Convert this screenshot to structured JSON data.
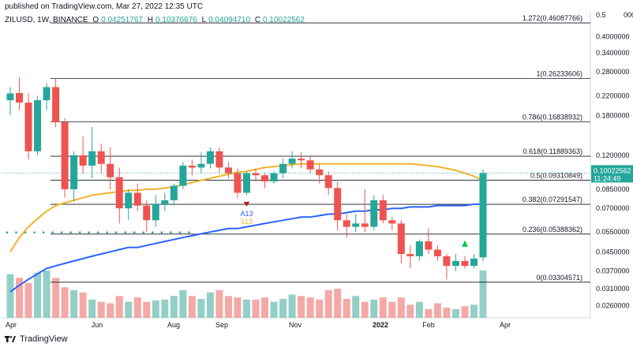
{
  "header": {
    "published": "published on TradingView.com, Mar 27, 2022 12:35 UTC",
    "symbol": "ZILUSD, 1W, BINANCE",
    "o_label": "O",
    "o_value": "0.04251767",
    "h_label": "H",
    "h_value": "0.10376676",
    "l_label": "L",
    "l_value": "0.04094710",
    "c_label": "C",
    "c_value": "0.10022562"
  },
  "footer": {
    "brand": "TradingView"
  },
  "colors": {
    "up": "#26a69a",
    "down": "#ef5350",
    "ma_fast": "#f0b429",
    "ma_slow": "#2962ff",
    "vol_up": "#93cfc7",
    "vol_down": "#f4a9a7",
    "price_tag": "#26a69a"
  },
  "price_tag": {
    "price": "0.10022562",
    "countdown": "11:24:49"
  },
  "chart_data": {
    "type": "candlestick",
    "scale": "log",
    "ylim": [
      0.023,
      0.52
    ],
    "x_tick_labels": [
      "Apr",
      "Jun",
      "Aug",
      "Sep",
      "Nov",
      "2022",
      "Feb",
      "Apr"
    ],
    "y_tick_labels": [
      "0.5",
      "0.4000000",
      "0.3400000",
      "0.2800000",
      "0.2200000",
      "0.1800000",
      "0.1200000",
      "0.0850000",
      "0.0700000",
      "0.0550000",
      "0.0450000",
      "0.0370000",
      "0.0310000",
      "0.0260000"
    ],
    "y_tick_values": [
      0.5,
      0.4,
      0.34,
      0.28,
      0.22,
      0.18,
      0.12,
      0.085,
      0.07,
      0.055,
      0.045,
      0.037,
      0.031,
      0.026
    ],
    "axis_top_partial": "000",
    "fib_levels": [
      {
        "label": "1.272(0.46087766)",
        "value": 0.46087766
      },
      {
        "label": "1(0.26233606)",
        "value": 0.26233606
      },
      {
        "label": "0.786(0.16838932)",
        "value": 0.16838932
      },
      {
        "label": "0.618(0.11889363)",
        "value": 0.11889363
      },
      {
        "label": "0.5(0.09310849)",
        "value": 0.09310849
      },
      {
        "label": "0.382(0.07291547)",
        "value": 0.07291547
      },
      {
        "label": "0.236(0.05388362)",
        "value": 0.05388362
      },
      {
        "label": "0(0.03304571)",
        "value": 0.03304571
      }
    ],
    "candles": [
      {
        "o": 0.21,
        "h": 0.24,
        "l": 0.18,
        "c": 0.225
      },
      {
        "o": 0.226,
        "h": 0.265,
        "l": 0.19,
        "c": 0.205
      },
      {
        "o": 0.205,
        "h": 0.225,
        "l": 0.115,
        "c": 0.125
      },
      {
        "o": 0.125,
        "h": 0.22,
        "l": 0.12,
        "c": 0.21
      },
      {
        "o": 0.21,
        "h": 0.25,
        "l": 0.19,
        "c": 0.24
      },
      {
        "o": 0.24,
        "h": 0.262,
        "l": 0.16,
        "c": 0.168
      },
      {
        "o": 0.168,
        "h": 0.175,
        "l": 0.078,
        "c": 0.085
      },
      {
        "o": 0.085,
        "h": 0.125,
        "l": 0.075,
        "c": 0.12
      },
      {
        "o": 0.12,
        "h": 0.145,
        "l": 0.1,
        "c": 0.108
      },
      {
        "o": 0.108,
        "h": 0.16,
        "l": 0.095,
        "c": 0.125
      },
      {
        "o": 0.125,
        "h": 0.135,
        "l": 0.1,
        "c": 0.11
      },
      {
        "o": 0.11,
        "h": 0.13,
        "l": 0.085,
        "c": 0.096
      },
      {
        "o": 0.096,
        "h": 0.106,
        "l": 0.06,
        "c": 0.07
      },
      {
        "o": 0.07,
        "h": 0.085,
        "l": 0.062,
        "c": 0.082
      },
      {
        "o": 0.082,
        "h": 0.09,
        "l": 0.068,
        "c": 0.072
      },
      {
        "o": 0.072,
        "h": 0.076,
        "l": 0.055,
        "c": 0.062
      },
      {
        "o": 0.062,
        "h": 0.08,
        "l": 0.058,
        "c": 0.073
      },
      {
        "o": 0.073,
        "h": 0.082,
        "l": 0.068,
        "c": 0.076
      },
      {
        "o": 0.076,
        "h": 0.09,
        "l": 0.072,
        "c": 0.088
      },
      {
        "o": 0.088,
        "h": 0.112,
        "l": 0.085,
        "c": 0.108
      },
      {
        "o": 0.108,
        "h": 0.115,
        "l": 0.098,
        "c": 0.106
      },
      {
        "o": 0.106,
        "h": 0.124,
        "l": 0.1,
        "c": 0.11
      },
      {
        "o": 0.11,
        "h": 0.13,
        "l": 0.105,
        "c": 0.125
      },
      {
        "o": 0.125,
        "h": 0.13,
        "l": 0.1,
        "c": 0.106
      },
      {
        "o": 0.106,
        "h": 0.112,
        "l": 0.095,
        "c": 0.1
      },
      {
        "o": 0.1,
        "h": 0.105,
        "l": 0.078,
        "c": 0.082
      },
      {
        "o": 0.082,
        "h": 0.102,
        "l": 0.08,
        "c": 0.1
      },
      {
        "o": 0.1,
        "h": 0.105,
        "l": 0.092,
        "c": 0.098
      },
      {
        "o": 0.098,
        "h": 0.1,
        "l": 0.086,
        "c": 0.092
      },
      {
        "o": 0.092,
        "h": 0.102,
        "l": 0.09,
        "c": 0.1
      },
      {
        "o": 0.1,
        "h": 0.116,
        "l": 0.095,
        "c": 0.11
      },
      {
        "o": 0.11,
        "h": 0.125,
        "l": 0.105,
        "c": 0.116
      },
      {
        "o": 0.116,
        "h": 0.124,
        "l": 0.105,
        "c": 0.114
      },
      {
        "o": 0.114,
        "h": 0.12,
        "l": 0.1,
        "c": 0.104
      },
      {
        "o": 0.104,
        "h": 0.11,
        "l": 0.09,
        "c": 0.098
      },
      {
        "o": 0.098,
        "h": 0.102,
        "l": 0.08,
        "c": 0.086
      },
      {
        "o": 0.086,
        "h": 0.092,
        "l": 0.056,
        "c": 0.062
      },
      {
        "o": 0.062,
        "h": 0.066,
        "l": 0.052,
        "c": 0.058
      },
      {
        "o": 0.058,
        "h": 0.066,
        "l": 0.055,
        "c": 0.06
      },
      {
        "o": 0.06,
        "h": 0.085,
        "l": 0.055,
        "c": 0.058
      },
      {
        "o": 0.058,
        "h": 0.08,
        "l": 0.056,
        "c": 0.076
      },
      {
        "o": 0.076,
        "h": 0.08,
        "l": 0.06,
        "c": 0.062
      },
      {
        "o": 0.062,
        "h": 0.064,
        "l": 0.056,
        "c": 0.06
      },
      {
        "o": 0.06,
        "h": 0.062,
        "l": 0.04,
        "c": 0.044
      },
      {
        "o": 0.044,
        "h": 0.048,
        "l": 0.038,
        "c": 0.043
      },
      {
        "o": 0.043,
        "h": 0.051,
        "l": 0.041,
        "c": 0.05
      },
      {
        "o": 0.05,
        "h": 0.057,
        "l": 0.044,
        "c": 0.046
      },
      {
        "o": 0.046,
        "h": 0.048,
        "l": 0.041,
        "c": 0.043
      },
      {
        "o": 0.043,
        "h": 0.044,
        "l": 0.034,
        "c": 0.039
      },
      {
        "o": 0.039,
        "h": 0.044,
        "l": 0.037,
        "c": 0.041
      },
      {
        "o": 0.041,
        "h": 0.043,
        "l": 0.038,
        "c": 0.039
      },
      {
        "o": 0.039,
        "h": 0.044,
        "l": 0.038,
        "c": 0.042
      },
      {
        "o": 0.0425,
        "h": 0.1038,
        "l": 0.0409,
        "c": 0.1002
      }
    ],
    "volumes": [
      60,
      55,
      48,
      62,
      65,
      55,
      42,
      38,
      35,
      25,
      22,
      20,
      30,
      22,
      28,
      22,
      24,
      25,
      30,
      38,
      30,
      26,
      35,
      38,
      30,
      28,
      25,
      25,
      28,
      22,
      26,
      32,
      30,
      28,
      25,
      38,
      40,
      26,
      30,
      22,
      25,
      28,
      22,
      28,
      18,
      22,
      12,
      20,
      14,
      12,
      16,
      18,
      65
    ],
    "ma_fast": [
      0.045,
      0.052,
      0.058,
      0.063,
      0.068,
      0.072,
      0.074,
      0.076,
      0.078,
      0.08,
      0.081,
      0.082,
      0.083,
      0.084,
      0.084,
      0.085,
      0.085,
      0.086,
      0.087,
      0.089,
      0.091,
      0.093,
      0.095,
      0.097,
      0.099,
      0.101,
      0.102,
      0.104,
      0.106,
      0.107,
      0.108,
      0.109,
      0.11,
      0.11,
      0.11,
      0.11,
      0.11,
      0.11,
      0.11,
      0.11,
      0.11,
      0.11,
      0.11,
      0.11,
      0.11,
      0.109,
      0.108,
      0.107,
      0.105,
      0.103,
      0.1,
      0.097,
      0.093
    ],
    "ma_slow": [
      0.03,
      0.032,
      0.034,
      0.036,
      0.038,
      0.039,
      0.04,
      0.041,
      0.042,
      0.043,
      0.044,
      0.045,
      0.046,
      0.047,
      0.047,
      0.048,
      0.049,
      0.05,
      0.051,
      0.052,
      0.053,
      0.054,
      0.055,
      0.056,
      0.057,
      0.057,
      0.058,
      0.059,
      0.06,
      0.061,
      0.062,
      0.063,
      0.064,
      0.064,
      0.065,
      0.066,
      0.066,
      0.067,
      0.068,
      0.068,
      0.069,
      0.069,
      0.07,
      0.07,
      0.071,
      0.071,
      0.071,
      0.072,
      0.072,
      0.072,
      0.072,
      0.073,
      0.073
    ],
    "td_markers": [
      {
        "label": "A13",
        "color": "#2962ff"
      },
      {
        "label": "513",
        "color": "#f0b429"
      }
    ]
  }
}
